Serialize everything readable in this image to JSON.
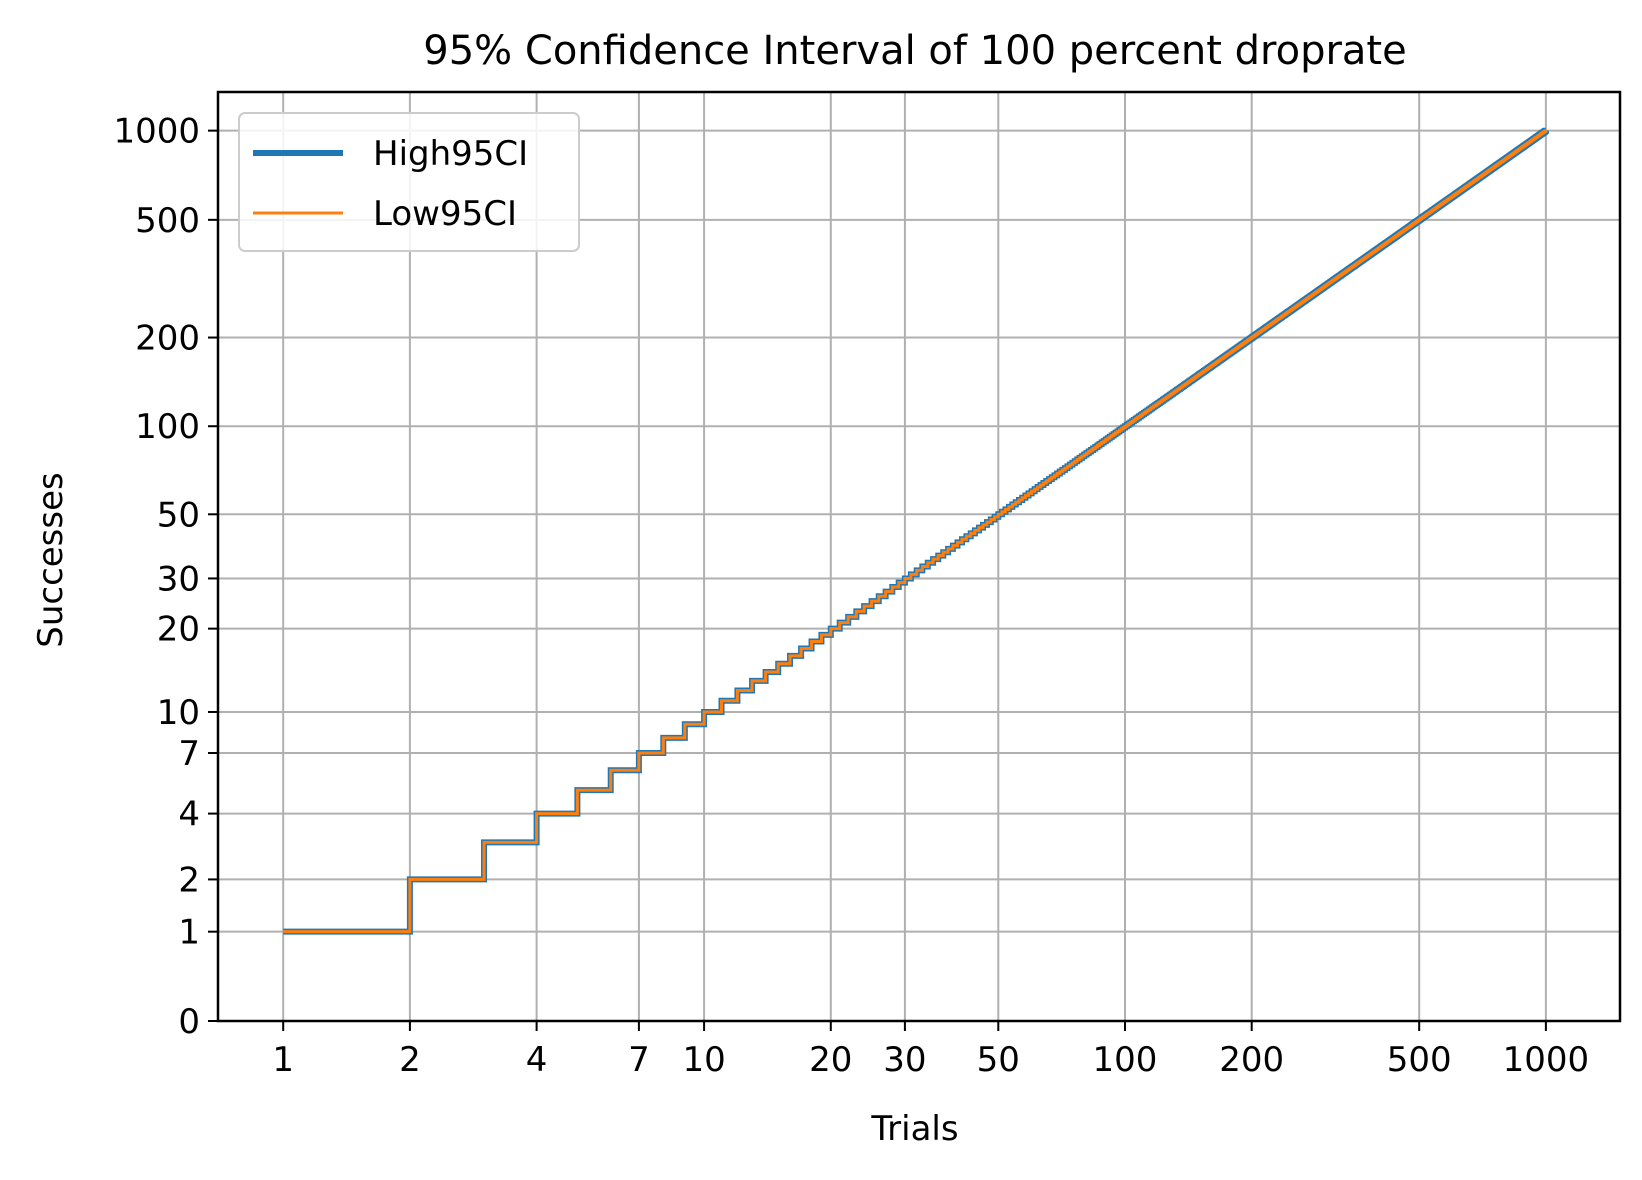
{
  "chart_data": {
    "type": "line",
    "title": "95% Confidence Interval of 100 percent droprate",
    "xlabel": "Trials",
    "ylabel": "Successes",
    "x_scale": "log",
    "y_scale": "log1p",
    "xlim": [
      0.7,
      1500
    ],
    "ylim": [
      0,
      1350
    ],
    "x_ticks": [
      1,
      2,
      4,
      7,
      10,
      20,
      30,
      50,
      100,
      200,
      500,
      1000
    ],
    "x_tick_labels": [
      "1",
      "2",
      "4",
      "7",
      "10",
      "20",
      "30",
      "50",
      "100",
      "200",
      "500",
      "1000"
    ],
    "y_ticks": [
      0,
      1,
      2,
      4,
      7,
      10,
      20,
      30,
      50,
      100,
      200,
      500,
      1000
    ],
    "y_tick_labels": [
      "0",
      "1",
      "2",
      "4",
      "7",
      "10",
      "20",
      "30",
      "50",
      "100",
      "200",
      "500",
      "1000"
    ],
    "grid": true,
    "legend_position": "top-left",
    "series": [
      {
        "name": "High95CI",
        "color": "#1f77b4",
        "style": "step",
        "x_range": [
          1,
          1000
        ],
        "relation": "y = floor(x)"
      },
      {
        "name": "Low95CI",
        "color": "#ff7f0e",
        "style": "step",
        "x_range": [
          1,
          1000
        ],
        "relation": "y = floor(x)"
      }
    ]
  }
}
